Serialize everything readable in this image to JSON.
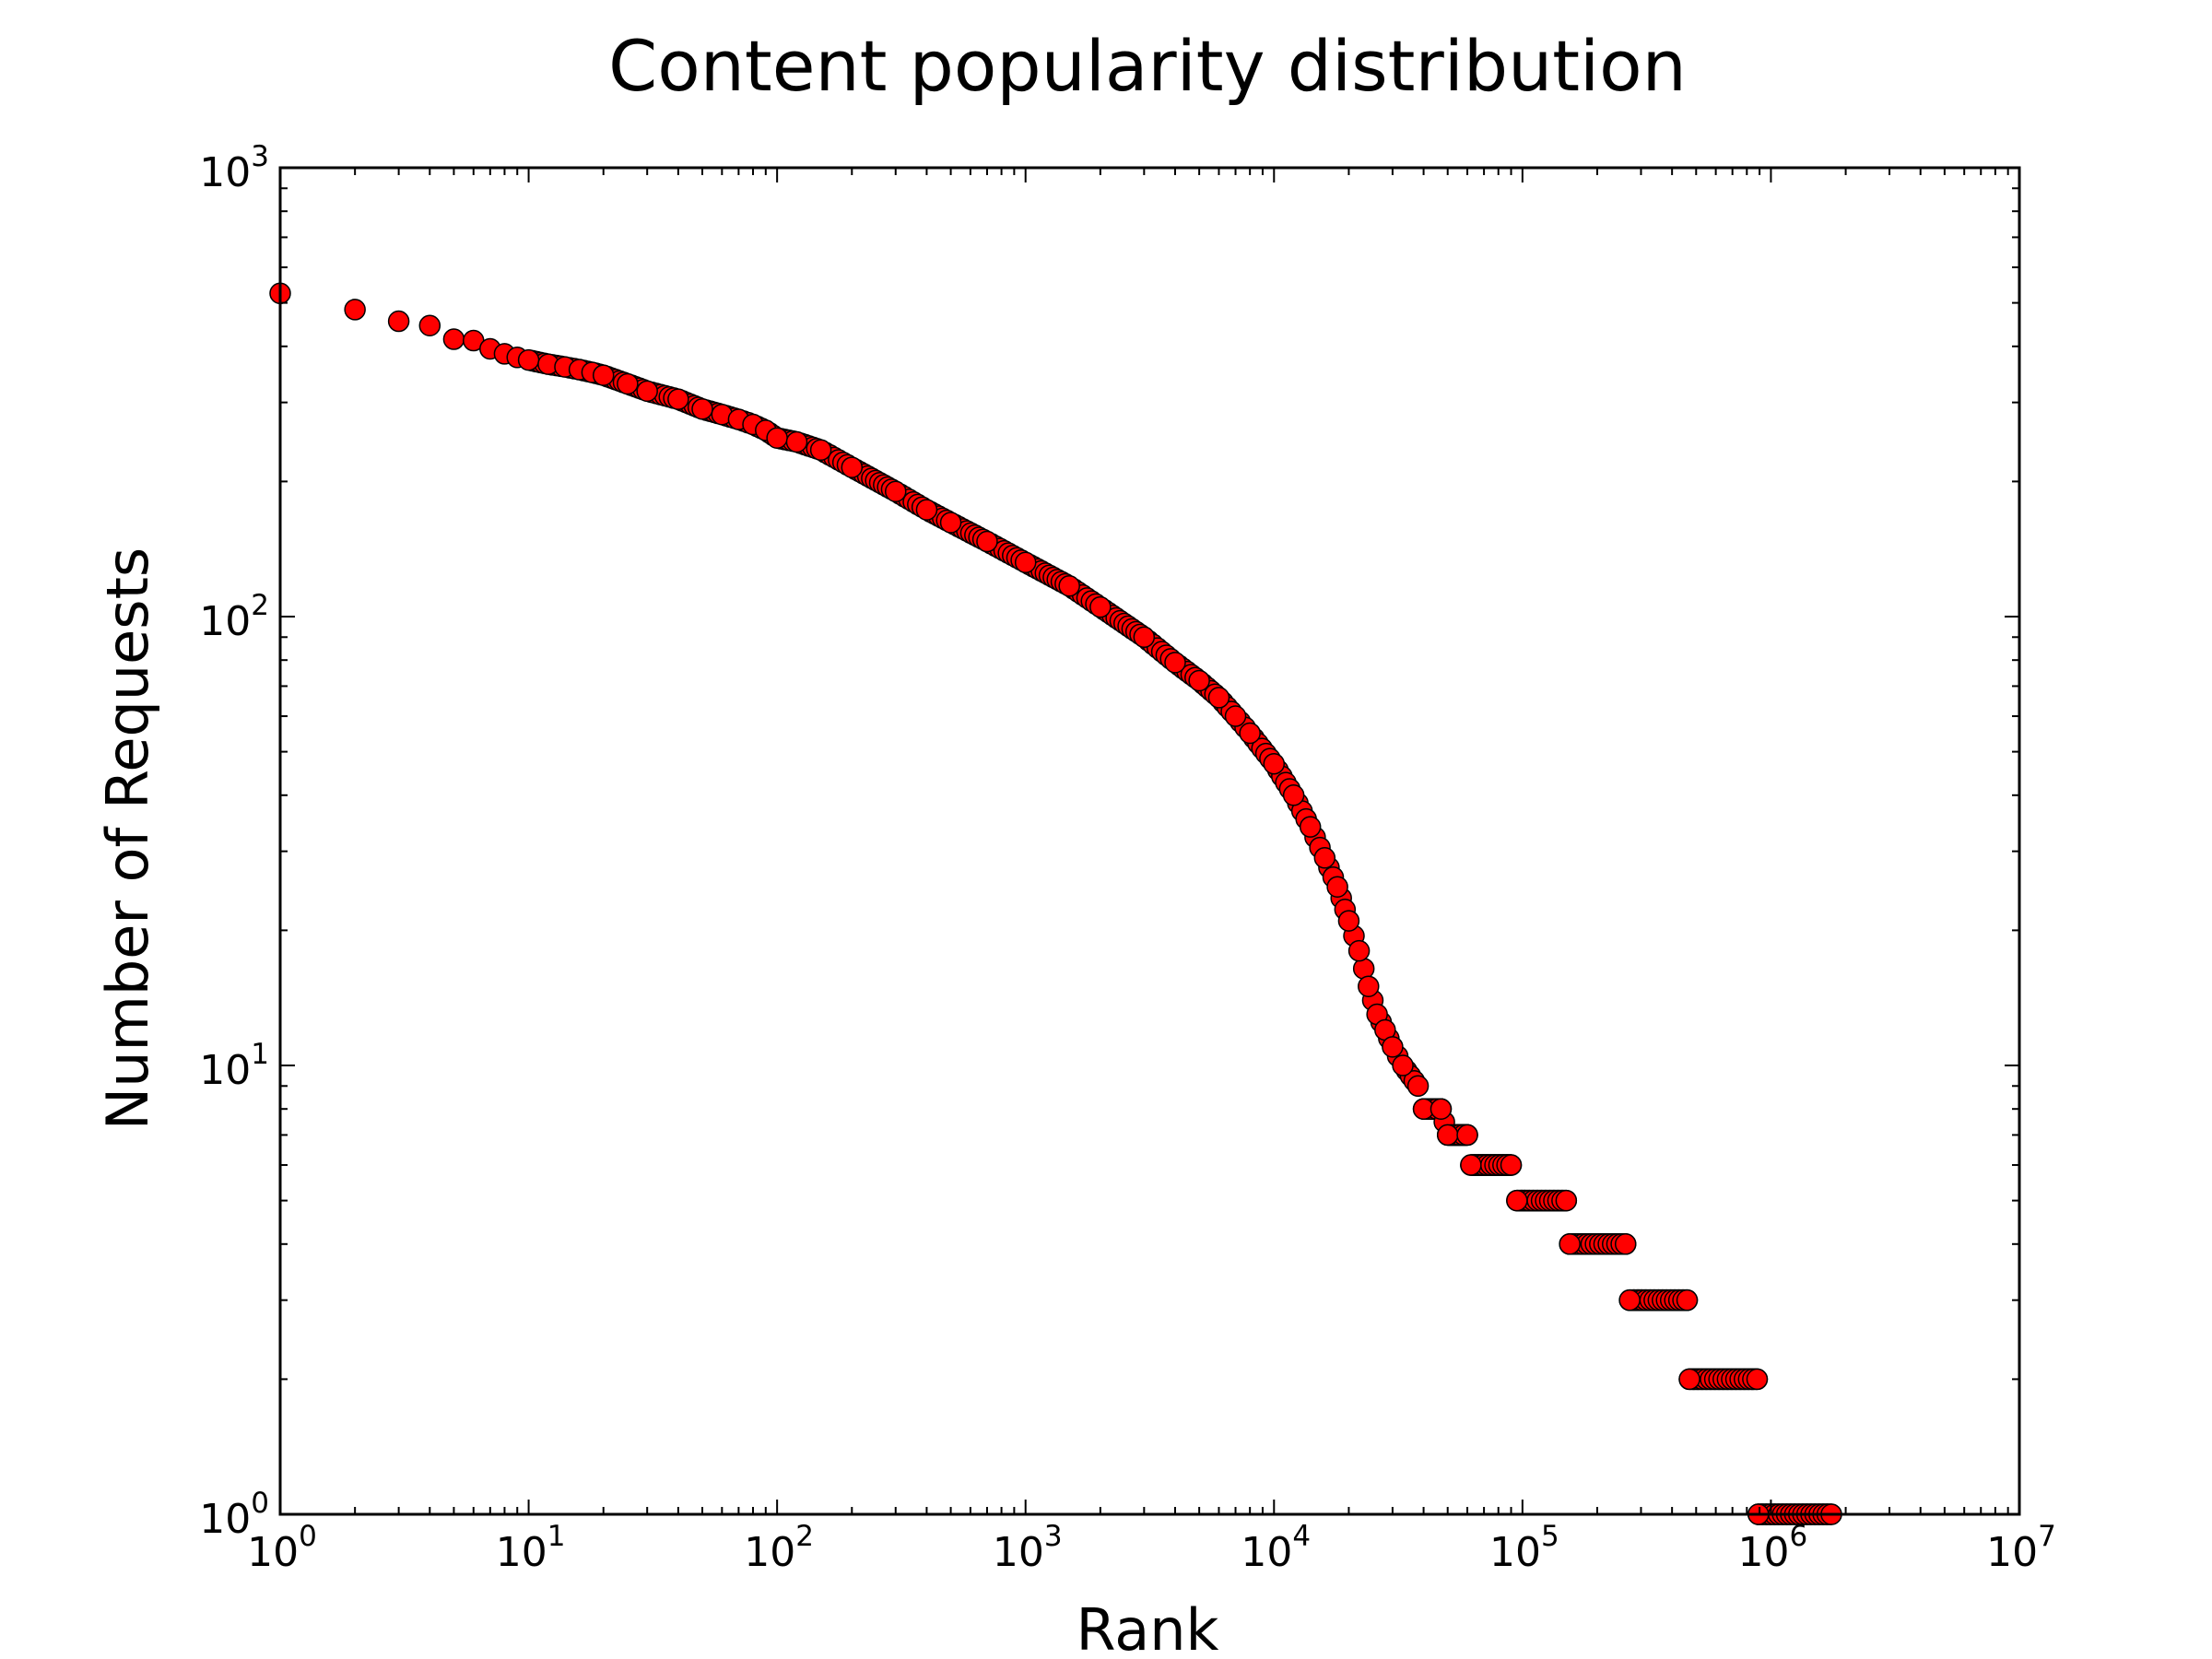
{
  "chart_data": {
    "type": "scatter",
    "title": "Content popularity distribution",
    "xlabel": "Rank",
    "ylabel": "Number of Requests",
    "xscale": "log",
    "yscale": "log",
    "xlim": [
      1,
      10000000
    ],
    "ylim": [
      1,
      1000
    ],
    "x_ticks": [
      {
        "base": "10",
        "exp": "0",
        "value": 1
      },
      {
        "base": "10",
        "exp": "1",
        "value": 10
      },
      {
        "base": "10",
        "exp": "2",
        "value": 100
      },
      {
        "base": "10",
        "exp": "3",
        "value": 1000
      },
      {
        "base": "10",
        "exp": "4",
        "value": 10000
      },
      {
        "base": "10",
        "exp": "5",
        "value": 100000
      },
      {
        "base": "10",
        "exp": "6",
        "value": 1000000
      },
      {
        "base": "10",
        "exp": "7",
        "value": 10000000
      }
    ],
    "y_ticks": [
      {
        "base": "10",
        "exp": "0",
        "value": 1
      },
      {
        "base": "10",
        "exp": "1",
        "value": 10
      },
      {
        "base": "10",
        "exp": "2",
        "value": 100
      },
      {
        "base": "10",
        "exp": "3",
        "value": 1000
      }
    ],
    "grid": false,
    "marker_fill": "#ff0000",
    "marker_edge": "#000000",
    "series": [
      {
        "points": [
          [
            1,
            525
          ],
          [
            2,
            483
          ],
          [
            3,
            455
          ],
          [
            4,
            445
          ],
          [
            5,
            415
          ],
          [
            6,
            412
          ],
          [
            7,
            395
          ],
          [
            8,
            385
          ],
          [
            9,
            378
          ],
          [
            10,
            373
          ],
          [
            12,
            365
          ],
          [
            14,
            360
          ],
          [
            16,
            355
          ],
          [
            18,
            350
          ],
          [
            20,
            345
          ],
          [
            25,
            330
          ],
          [
            30,
            318
          ],
          [
            40,
            305
          ],
          [
            50,
            290
          ],
          [
            60,
            282
          ],
          [
            70,
            275
          ],
          [
            80,
            268
          ],
          [
            90,
            260
          ],
          [
            100,
            250
          ],
          [
            120,
            245
          ],
          [
            150,
            235
          ],
          [
            200,
            215
          ],
          [
            300,
            190
          ],
          [
            400,
            173
          ],
          [
            500,
            162
          ],
          [
            700,
            147
          ],
          [
            1000,
            132
          ],
          [
            1500,
            117
          ],
          [
            2000,
            105
          ],
          [
            3000,
            90
          ],
          [
            4000,
            79
          ],
          [
            5000,
            72
          ],
          [
            6000,
            66
          ],
          [
            7000,
            60
          ],
          [
            8000,
            55
          ],
          [
            10000,
            47
          ],
          [
            12000,
            40
          ],
          [
            14000,
            34
          ],
          [
            16000,
            29
          ],
          [
            18000,
            25
          ],
          [
            20000,
            21
          ],
          [
            22000,
            18
          ],
          [
            24000,
            15
          ],
          [
            26000,
            13
          ],
          [
            28000,
            12
          ],
          [
            30000,
            11
          ],
          [
            33000,
            10
          ],
          [
            38000,
            9
          ],
          [
            40000,
            8
          ],
          [
            47000,
            8
          ],
          [
            50000,
            7
          ],
          [
            60000,
            7
          ],
          [
            62000,
            6
          ],
          [
            90000,
            6
          ],
          [
            95000,
            5
          ],
          [
            150000,
            5
          ],
          [
            155000,
            4
          ],
          [
            260000,
            4
          ],
          [
            270000,
            3
          ],
          [
            460000,
            3
          ],
          [
            470000,
            2
          ],
          [
            880000,
            2
          ],
          [
            890000,
            1
          ],
          [
            1750000,
            1
          ]
        ],
        "dense_runs": [
          {
            "from": 40000,
            "to": 47000,
            "y": 8
          },
          {
            "from": 50000,
            "to": 60000,
            "y": 7
          },
          {
            "from": 62000,
            "to": 90000,
            "y": 6
          },
          {
            "from": 95000,
            "to": 150000,
            "y": 5
          },
          {
            "from": 155000,
            "to": 260000,
            "y": 4
          },
          {
            "from": 270000,
            "to": 460000,
            "y": 3
          },
          {
            "from": 470000,
            "to": 880000,
            "y": 2
          },
          {
            "from": 890000,
            "to": 1750000,
            "y": 1
          }
        ]
      }
    ]
  }
}
